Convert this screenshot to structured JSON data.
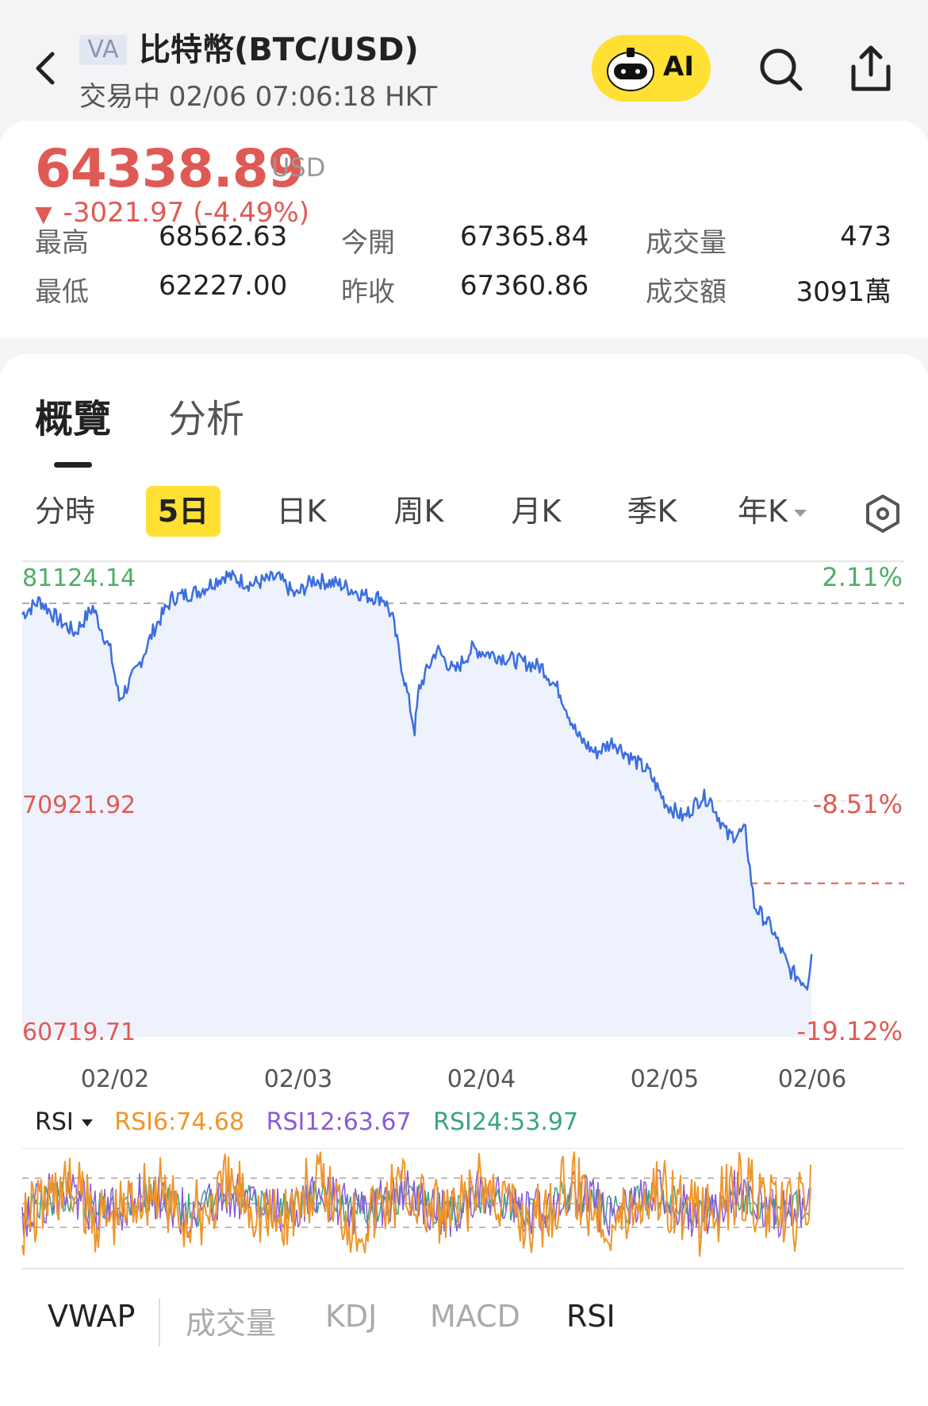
{
  "header": {
    "badge": "VA",
    "title": "比特幣(BTC/USD)",
    "subtitle": "交易中 02/06 07:06:18 HKT",
    "ai_label": "AI",
    "icons": [
      "chevron-left-icon",
      "robot-face-icon",
      "search-icon",
      "share-icon"
    ]
  },
  "quote": {
    "price": "64338.89",
    "currency": "USD",
    "change": "-3021.97 (-4.49%)",
    "change_color": "#e05a55",
    "stats": [
      {
        "label": "最高",
        "value": "68562.63"
      },
      {
        "label": "今開",
        "value": "67365.84"
      },
      {
        "label": "成交量",
        "value": "473"
      },
      {
        "label": "最低",
        "value": "62227.00"
      },
      {
        "label": "昨收",
        "value": "67360.86"
      },
      {
        "label": "成交額",
        "value": "3091萬"
      }
    ]
  },
  "tabs": [
    {
      "label": "概覽",
      "active": true
    },
    {
      "label": "分析",
      "active": false
    }
  ],
  "periods": [
    {
      "label": "分時"
    },
    {
      "label": "5日",
      "active": true
    },
    {
      "label": "日K"
    },
    {
      "label": "周K"
    },
    {
      "label": "月K"
    },
    {
      "label": "季K"
    },
    {
      "label": "年K"
    }
  ],
  "chart_data": {
    "type": "area",
    "ylim": [
      60719.71,
      81124.14
    ],
    "y_labels_left": [
      "81124.14",
      "70921.92",
      "60719.71"
    ],
    "y_labels_right": [
      "2.11%",
      "-8.51%",
      "-19.12%"
    ],
    "x_labels": [
      "02/02",
      "02/03",
      "02/04",
      "02/05",
      "02/06"
    ],
    "reference_lines": [
      {
        "value": 79479,
        "style": "dashed-gray"
      },
      {
        "value": 67360.86,
        "style": "dashed-red"
      }
    ],
    "line_color": "#3b6ee0",
    "fill_color": "#eef2fc",
    "series": [
      {
        "x": 0.0,
        "y": 79000
      },
      {
        "x": 0.02,
        "y": 79600
      },
      {
        "x": 0.04,
        "y": 78800
      },
      {
        "x": 0.06,
        "y": 78200
      },
      {
        "x": 0.08,
        "y": 79300
      },
      {
        "x": 0.1,
        "y": 77400
      },
      {
        "x": 0.11,
        "y": 75300
      },
      {
        "x": 0.13,
        "y": 76600
      },
      {
        "x": 0.15,
        "y": 78400
      },
      {
        "x": 0.17,
        "y": 79700
      },
      {
        "x": 0.2,
        "y": 80000
      },
      {
        "x": 0.23,
        "y": 80700
      },
      {
        "x": 0.26,
        "y": 80300
      },
      {
        "x": 0.29,
        "y": 80600
      },
      {
        "x": 0.31,
        "y": 79800
      },
      {
        "x": 0.33,
        "y": 80500
      },
      {
        "x": 0.36,
        "y": 80300
      },
      {
        "x": 0.39,
        "y": 79800
      },
      {
        "x": 0.41,
        "y": 79700
      },
      {
        "x": 0.42,
        "y": 78800
      },
      {
        "x": 0.43,
        "y": 76800
      },
      {
        "x": 0.445,
        "y": 74000
      },
      {
        "x": 0.45,
        "y": 75800
      },
      {
        "x": 0.47,
        "y": 77500
      },
      {
        "x": 0.49,
        "y": 76500
      },
      {
        "x": 0.51,
        "y": 77500
      },
      {
        "x": 0.53,
        "y": 77300
      },
      {
        "x": 0.56,
        "y": 77000
      },
      {
        "x": 0.59,
        "y": 76700
      },
      {
        "x": 0.61,
        "y": 75600
      },
      {
        "x": 0.63,
        "y": 73700
      },
      {
        "x": 0.65,
        "y": 73000
      },
      {
        "x": 0.67,
        "y": 73500
      },
      {
        "x": 0.69,
        "y": 72800
      },
      {
        "x": 0.71,
        "y": 72200
      },
      {
        "x": 0.73,
        "y": 70800
      },
      {
        "x": 0.75,
        "y": 70200
      },
      {
        "x": 0.77,
        "y": 71100
      },
      {
        "x": 0.78,
        "y": 71000
      },
      {
        "x": 0.8,
        "y": 69400
      },
      {
        "x": 0.82,
        "y": 69600
      },
      {
        "x": 0.83,
        "y": 66400
      },
      {
        "x": 0.85,
        "y": 65400
      },
      {
        "x": 0.87,
        "y": 63600
      },
      {
        "x": 0.89,
        "y": 63000
      },
      {
        "x": 0.895,
        "y": 64300
      }
    ]
  },
  "rsi": {
    "label": "RSI",
    "values": [
      {
        "text": "RSI6:74.68",
        "color": "#f0952a"
      },
      {
        "text": "RSI12:63.67",
        "color": "#8a5bd9"
      },
      {
        "text": "RSI24:53.97",
        "color": "#3aa386"
      }
    ]
  },
  "indicators": [
    {
      "label": "VWAP",
      "active": true
    },
    {
      "label": "成交量",
      "active": false
    },
    {
      "label": "KDJ",
      "active": false
    },
    {
      "label": "MACD",
      "active": false
    },
    {
      "label": "RSI",
      "active": true
    }
  ]
}
